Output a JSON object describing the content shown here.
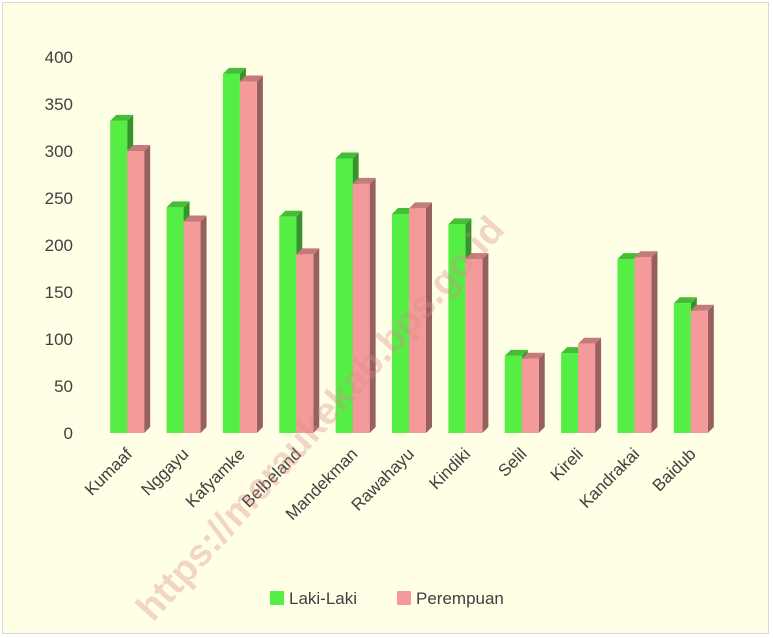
{
  "watermark": "https://meraukekab.bps.go.id",
  "chart_data": {
    "type": "bar",
    "title": "",
    "xlabel": "",
    "ylabel": "",
    "ylim": [
      0,
      400
    ],
    "yticks": [
      0,
      50,
      100,
      150,
      200,
      250,
      300,
      350,
      400
    ],
    "grid": false,
    "legend_position": "bottom",
    "categories": [
      "Kumaaf",
      "Nggayu",
      "Kafyamke",
      "Belbeland",
      "Mandekman",
      "Rawahayu",
      "Kindiki",
      "Selil",
      "Kireli",
      "Kandrakai",
      "Baidub"
    ],
    "series": [
      {
        "name": "Laki-Laki",
        "color": "#55EE44",
        "values": [
          332,
          240,
          382,
          230,
          292,
          233,
          222,
          82,
          85,
          185,
          138
        ]
      },
      {
        "name": "Perempuan",
        "color": "#F59A9A",
        "values": [
          300,
          225,
          374,
          190,
          265,
          239,
          185,
          79,
          95,
          187,
          130
        ]
      }
    ]
  }
}
